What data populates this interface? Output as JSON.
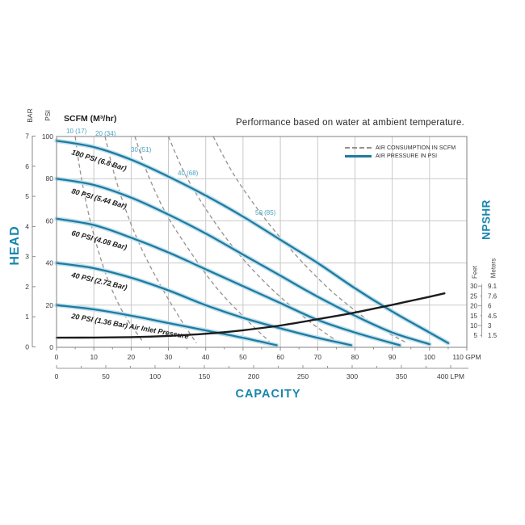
{
  "title": "Performance based on water at ambient temperature.",
  "scfm_header": "SCFM (M³/hr)",
  "labels": {
    "head": "HEAD",
    "capacity": "CAPACITY",
    "npshr": "NPSHR",
    "bar": "BAR",
    "psi": "PSI",
    "feet": "Feet",
    "meters": "Meters"
  },
  "legend": {
    "items": [
      {
        "label": "AIR CONSUMPTION IN SCFM",
        "style": "dashed"
      },
      {
        "label": "AIR PRESSURE IN PSI",
        "style": "solid"
      }
    ]
  },
  "colors": {
    "curve_blue": "#1e7ba1",
    "curve_halo": "#c2e0ec",
    "heading_blue": "#1886af",
    "teal_label": "#4aa3c2",
    "dashed_gray": "#97918b",
    "grid_gray": "#c9c9c9",
    "black_curve": "#1c1c1c",
    "axis_text": "#3a3a3a"
  },
  "chart_data": {
    "type": "line",
    "title": "Performance based on water at ambient temperature.",
    "x_axis": {
      "label": "CAPACITY",
      "gpm_ticks": [
        0,
        10,
        20,
        30,
        40,
        50,
        60,
        70,
        80,
        90,
        100,
        110
      ],
      "gpm_tick_labels": [
        "0",
        "10",
        "20",
        "30",
        "40",
        "50",
        "60",
        "70",
        "80",
        "90",
        "100",
        "110 GPM"
      ],
      "lpm_ticks": [
        0,
        50,
        100,
        150,
        200,
        250,
        300,
        350,
        400
      ],
      "lpm_tick_labels": [
        "0",
        "50",
        "100",
        "150",
        "200",
        "250",
        "300",
        "350",
        "400 LPM"
      ]
    },
    "y_axis": {
      "label": "HEAD",
      "psi_ticks": [
        0,
        20,
        40,
        60,
        80,
        100
      ],
      "psi_tick_labels": [
        "0",
        "20",
        "40",
        "60",
        "80",
        "100"
      ],
      "bar_ticks": [
        0,
        1,
        2,
        3,
        4,
        5,
        6,
        7
      ],
      "bar_tick_labels": [
        "0",
        "1",
        "2",
        "3",
        "4",
        "5",
        "6",
        "7"
      ]
    },
    "y2_axis": {
      "label": "NPSHR",
      "feet_ticks": [
        30,
        25,
        20,
        15,
        10,
        5
      ],
      "feet_tick_labels": [
        "30",
        "25",
        "20",
        "15",
        "10",
        "5"
      ],
      "meters_tick_labels": [
        "9.1",
        "7.6",
        "6",
        "4.5",
        "3",
        "1.5"
      ]
    },
    "pressure_curves": [
      {
        "label": "100 PSI (6.8 Bar)",
        "points_gpm_psi": [
          [
            0,
            98
          ],
          [
            10,
            95
          ],
          [
            20,
            89
          ],
          [
            30,
            81
          ],
          [
            40,
            72
          ],
          [
            50,
            62
          ],
          [
            60,
            51
          ],
          [
            70,
            40
          ],
          [
            80,
            28
          ],
          [
            90,
            17
          ],
          [
            100,
            7
          ],
          [
            105,
            2
          ]
        ]
      },
      {
        "label": "80 PSI (5.44 Bar)",
        "points_gpm_psi": [
          [
            0,
            80
          ],
          [
            10,
            77
          ],
          [
            20,
            71
          ],
          [
            30,
            63
          ],
          [
            40,
            54
          ],
          [
            50,
            44
          ],
          [
            60,
            34
          ],
          [
            70,
            24
          ],
          [
            80,
            15
          ],
          [
            90,
            7
          ],
          [
            100,
            1.5
          ]
        ]
      },
      {
        "label": "60 PSI (4.08 Bar)",
        "points_gpm_psi": [
          [
            0,
            61
          ],
          [
            10,
            58
          ],
          [
            20,
            52
          ],
          [
            30,
            45
          ],
          [
            40,
            37
          ],
          [
            50,
            29
          ],
          [
            60,
            21
          ],
          [
            70,
            13
          ],
          [
            80,
            7
          ],
          [
            92,
            1
          ]
        ]
      },
      {
        "label": "40 PSI (2.72 Bar)",
        "points_gpm_psi": [
          [
            0,
            40
          ],
          [
            10,
            37.5
          ],
          [
            20,
            33
          ],
          [
            30,
            27
          ],
          [
            40,
            20
          ],
          [
            50,
            14
          ],
          [
            60,
            9
          ],
          [
            70,
            4.5
          ],
          [
            79,
            1
          ]
        ]
      },
      {
        "label": "20 PSI (1.36 Bar) Air Inlet Pressure",
        "points_gpm_psi": [
          [
            0,
            20
          ],
          [
            10,
            18
          ],
          [
            20,
            15
          ],
          [
            30,
            11.5
          ],
          [
            40,
            8
          ],
          [
            50,
            4.5
          ],
          [
            59,
            1
          ]
        ]
      }
    ],
    "air_consumption_curves": [
      {
        "label": "10 (17)",
        "points_gpm_psi": [
          [
            5,
            100
          ],
          [
            6.5,
            82
          ],
          [
            8.5,
            64
          ],
          [
            11,
            47
          ],
          [
            14,
            31
          ],
          [
            18,
            16
          ],
          [
            23,
            3
          ]
        ]
      },
      {
        "label": "20 (34)",
        "points_gpm_psi": [
          [
            13,
            100
          ],
          [
            15.5,
            82
          ],
          [
            19,
            63
          ],
          [
            23,
            46
          ],
          [
            28,
            29
          ],
          [
            33,
            14
          ],
          [
            37.5,
            2
          ]
        ]
      },
      {
        "label": "30 (51)",
        "points_gpm_psi": [
          [
            21,
            100
          ],
          [
            24.5,
            82
          ],
          [
            29.5,
            63
          ],
          [
            36,
            45
          ],
          [
            43,
            28
          ],
          [
            51,
            13
          ],
          [
            57.5,
            2
          ]
        ]
      },
      {
        "label": "40 (68)",
        "points_gpm_psi": [
          [
            30,
            100
          ],
          [
            34.5,
            82
          ],
          [
            41,
            63
          ],
          [
            48.5,
            45
          ],
          [
            57.5,
            28
          ],
          [
            68,
            12
          ],
          [
            76,
            2
          ]
        ]
      },
      {
        "label": "50 (85)",
        "points_gpm_psi": [
          [
            42,
            100
          ],
          [
            47.5,
            82
          ],
          [
            55,
            63
          ],
          [
            63.5,
            45
          ],
          [
            73.5,
            27
          ],
          [
            85,
            11
          ],
          [
            94,
            2
          ]
        ]
      }
    ],
    "npshr_curve": {
      "points_gpm_feet": [
        [
          0,
          3.8
        ],
        [
          10,
          3.9
        ],
        [
          20,
          4.1
        ],
        [
          30,
          4.7
        ],
        [
          40,
          5.8
        ],
        [
          50,
          7.6
        ],
        [
          60,
          10
        ],
        [
          70,
          13.2
        ],
        [
          80,
          16.6
        ],
        [
          90,
          20.5
        ],
        [
          100,
          24.6
        ],
        [
          104,
          26.3
        ]
      ]
    }
  }
}
